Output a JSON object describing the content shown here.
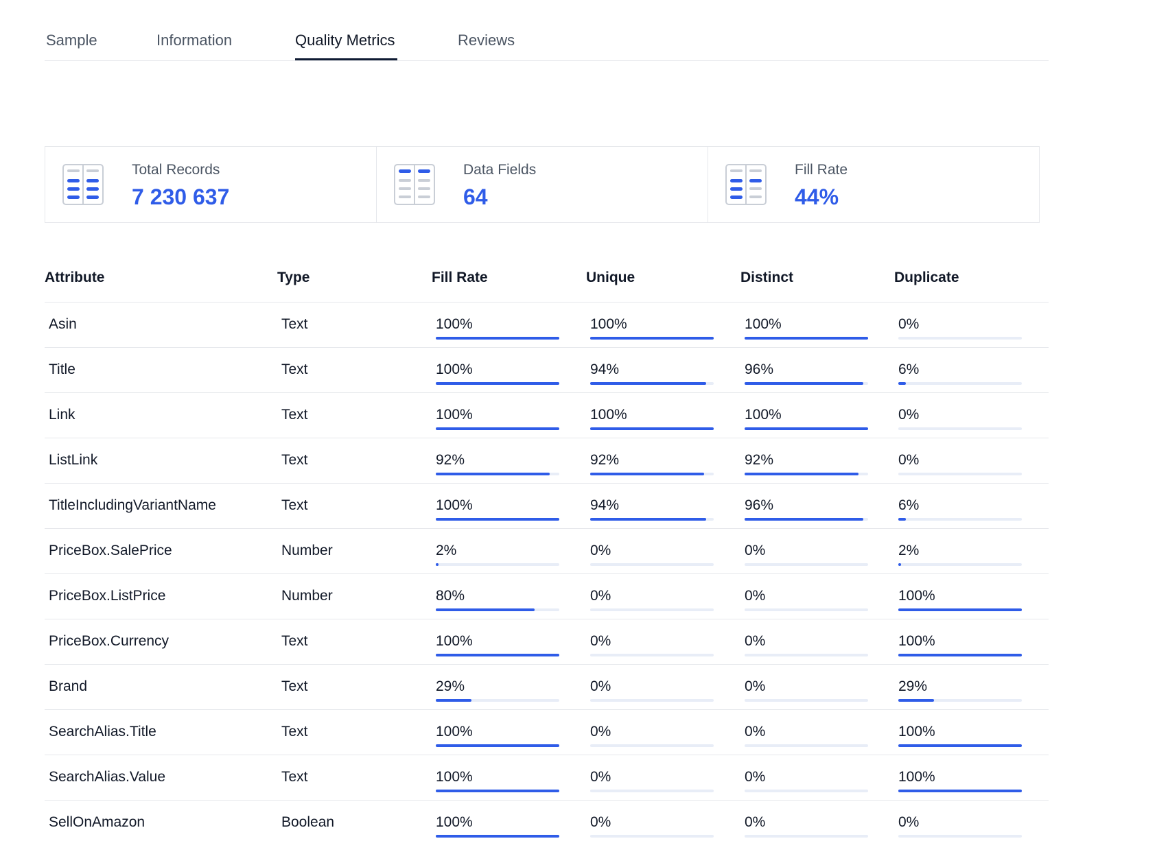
{
  "tabs": [
    {
      "label": "Sample",
      "active": false
    },
    {
      "label": "Information",
      "active": false
    },
    {
      "label": "Quality Metrics",
      "active": true
    },
    {
      "label": "Reviews",
      "active": false
    }
  ],
  "stats": [
    {
      "label": "Total Records",
      "value": "7 230 637",
      "icon": "table-icon"
    },
    {
      "label": "Data Fields",
      "value": "64",
      "icon": "table-icon"
    },
    {
      "label": "Fill Rate",
      "value": "44%",
      "icon": "table-icon"
    }
  ],
  "colors": {
    "accent": "#2f5ce8",
    "track": "#e8edf7",
    "border": "#e5e7eb",
    "tab_active_underline": "#0f1b33"
  },
  "table": {
    "headers": [
      "Attribute",
      "Type",
      "Fill Rate",
      "Unique",
      "Distinct",
      "Duplicate"
    ],
    "rows": [
      {
        "attribute": "Asin",
        "type": "Text",
        "fill_rate": "100%",
        "unique": "100%",
        "distinct": "100%",
        "duplicate": "0%"
      },
      {
        "attribute": "Title",
        "type": "Text",
        "fill_rate": "100%",
        "unique": "94%",
        "distinct": "96%",
        "duplicate": "6%"
      },
      {
        "attribute": "Link",
        "type": "Text",
        "fill_rate": "100%",
        "unique": "100%",
        "distinct": "100%",
        "duplicate": "0%"
      },
      {
        "attribute": "ListLink",
        "type": "Text",
        "fill_rate": "92%",
        "unique": "92%",
        "distinct": "92%",
        "duplicate": "0%"
      },
      {
        "attribute": "TitleIncludingVariantName",
        "type": "Text",
        "fill_rate": "100%",
        "unique": "94%",
        "distinct": "96%",
        "duplicate": "6%"
      },
      {
        "attribute": "PriceBox.SalePrice",
        "type": "Number",
        "fill_rate": "2%",
        "unique": "0%",
        "distinct": "0%",
        "duplicate": "2%"
      },
      {
        "attribute": "PriceBox.ListPrice",
        "type": "Number",
        "fill_rate": "80%",
        "unique": "0%",
        "distinct": "0%",
        "duplicate": "100%"
      },
      {
        "attribute": "PriceBox.Currency",
        "type": "Text",
        "fill_rate": "100%",
        "unique": "0%",
        "distinct": "0%",
        "duplicate": "100%"
      },
      {
        "attribute": "Brand",
        "type": "Text",
        "fill_rate": "29%",
        "unique": "0%",
        "distinct": "0%",
        "duplicate": "29%"
      },
      {
        "attribute": "SearchAlias.Title",
        "type": "Text",
        "fill_rate": "100%",
        "unique": "0%",
        "distinct": "0%",
        "duplicate": "100%"
      },
      {
        "attribute": "SearchAlias.Value",
        "type": "Text",
        "fill_rate": "100%",
        "unique": "0%",
        "distinct": "0%",
        "duplicate": "100%"
      },
      {
        "attribute": "SellOnAmazon",
        "type": "Boolean",
        "fill_rate": "100%",
        "unique": "0%",
        "distinct": "0%",
        "duplicate": "0%"
      }
    ]
  }
}
